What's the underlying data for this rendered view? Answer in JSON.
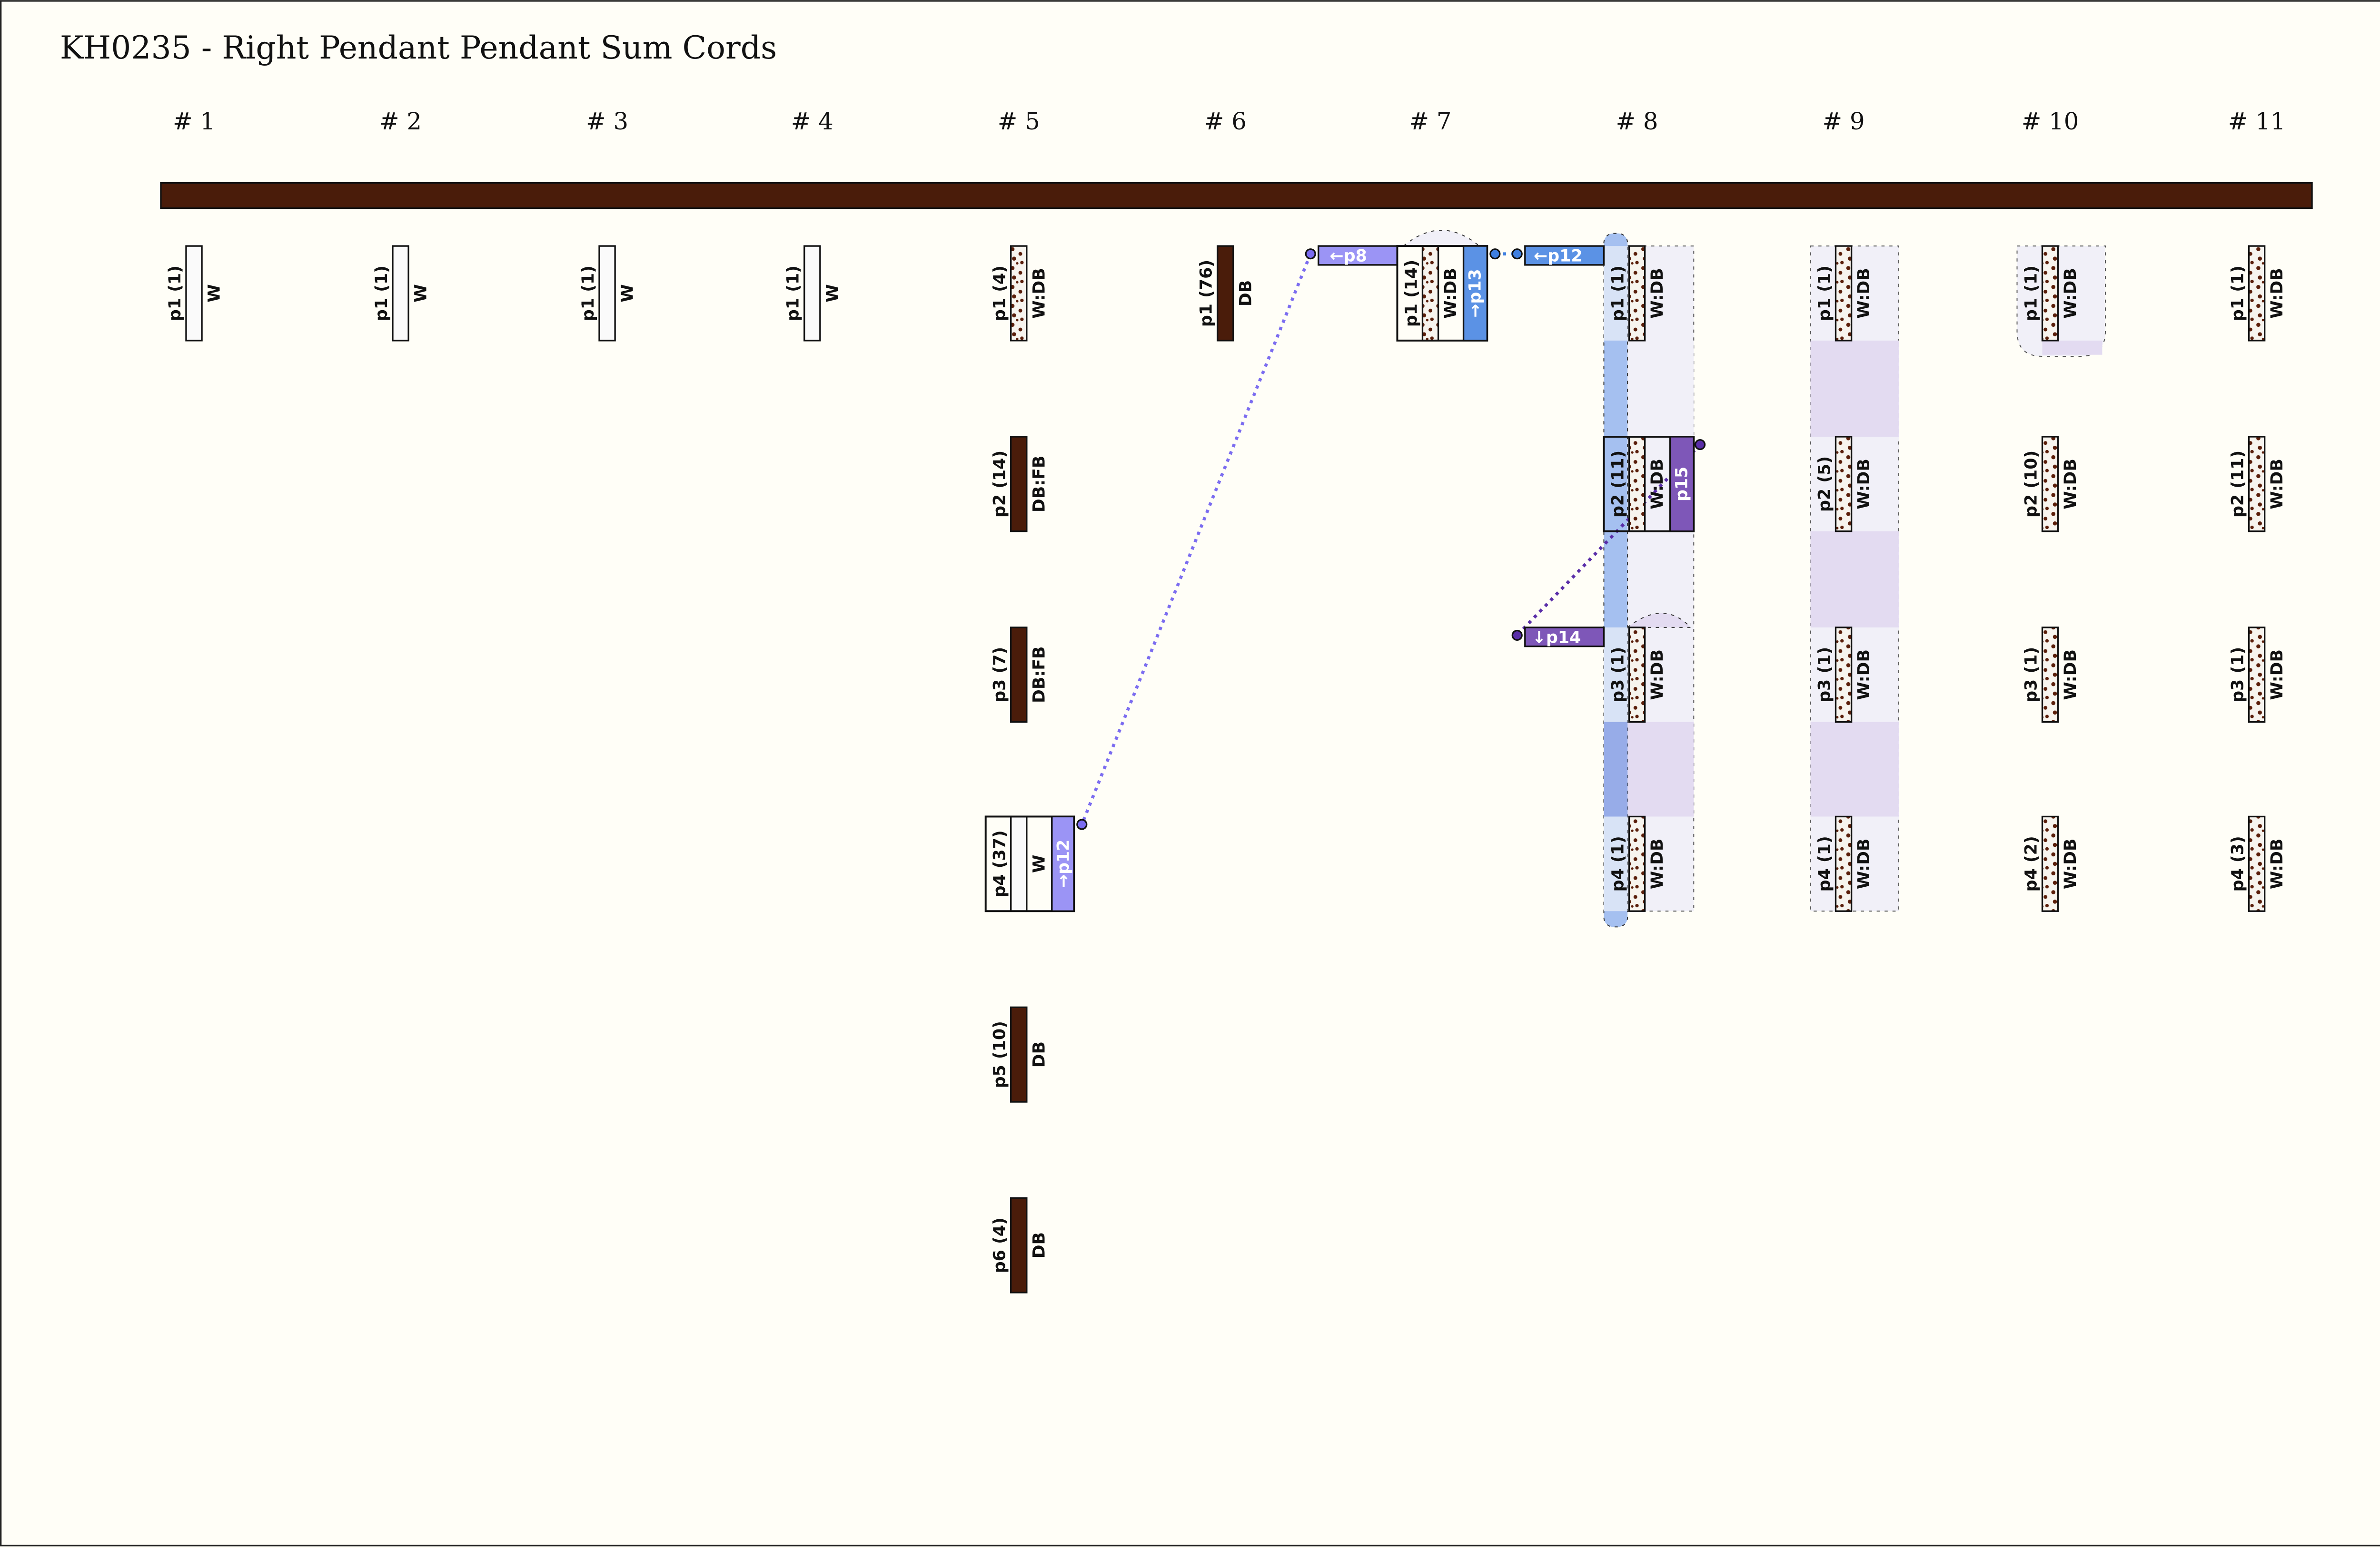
{
  "title": "KH0235 - Right Pendant Pendant Sum Cords",
  "colors": {
    "main_cord": "#4a1c0a",
    "white_cord": "#fafafa",
    "dark_brown": "#4a1c0a",
    "speckle_dot": "#5a1e0a",
    "sum_p8": "#9b94f5",
    "sum_p12": "#5b92e5",
    "sum_p13": "#5b92e5",
    "sum_p14": "#7e57b8",
    "sum_p15": "#7e57b8",
    "group_bg": "#f1f0f8",
    "group_gap": "#e3dbf1",
    "highlight_strip": "#a5c0f0"
  },
  "columns": [
    {
      "header": "# 1",
      "cords": [
        {
          "label": "p1 (1)",
          "code": "W"
        }
      ]
    },
    {
      "header": "# 2",
      "cords": [
        {
          "label": "p1 (1)",
          "code": "W"
        }
      ]
    },
    {
      "header": "# 3",
      "cords": [
        {
          "label": "p1 (1)",
          "code": "W"
        }
      ]
    },
    {
      "header": "# 4",
      "cords": [
        {
          "label": "p1 (1)",
          "code": "W"
        }
      ]
    },
    {
      "header": "# 5",
      "cords": [
        {
          "label": "p1 (4)",
          "code": "W:DB"
        },
        {
          "label": "p2 (14)",
          "code": "DB:FB"
        },
        {
          "label": "p3 (7)",
          "code": "DB:FB"
        },
        {
          "label": "p4 (37)",
          "code": "W"
        },
        {
          "label": "p5 (10)",
          "code": "DB"
        },
        {
          "label": "p6 (4)",
          "code": "DB"
        }
      ]
    },
    {
      "header": "# 6",
      "cords": [
        {
          "label": "p1 (76)",
          "code": "DB"
        }
      ]
    },
    {
      "header": "# 7",
      "cords": [
        {
          "label": "p1 (14)",
          "code": "W:DB"
        }
      ]
    },
    {
      "header": "# 8",
      "cords": [
        {
          "label": "p1 (1)",
          "code": "W:DB"
        },
        {
          "label": "p2 (11)",
          "code": "W:DB"
        },
        {
          "label": "p3 (1)",
          "code": "W:DB"
        },
        {
          "label": "p4 (1)",
          "code": "W:DB"
        }
      ]
    },
    {
      "header": "# 9",
      "cords": [
        {
          "label": "p1 (1)",
          "code": "W:DB"
        },
        {
          "label": "p2 (5)",
          "code": "W:DB"
        },
        {
          "label": "p3 (1)",
          "code": "W:DB"
        },
        {
          "label": "p4 (1)",
          "code": "W:DB"
        }
      ]
    },
    {
      "header": "# 10",
      "cords": [
        {
          "label": "p1 (1)",
          "code": "W:DB"
        },
        {
          "label": "p2 (10)",
          "code": "W:DB"
        },
        {
          "label": "p3 (1)",
          "code": "W:DB"
        },
        {
          "label": "p4 (2)",
          "code": "W:DB"
        }
      ]
    },
    {
      "header": "# 11",
      "cords": [
        {
          "label": "p1 (1)",
          "code": "W:DB"
        },
        {
          "label": "p2 (11)",
          "code": "W:DB"
        },
        {
          "label": "p3 (1)",
          "code": "W:DB"
        },
        {
          "label": "p4 (3)",
          "code": "W:DB"
        }
      ]
    }
  ],
  "sum_links": {
    "p5_p4_tag": "→p12",
    "p7_left_tag": "←p8",
    "p7_right_tag": "→p13",
    "p8_top_tag": "←p12",
    "p8_p2_tag": "p15",
    "p8_p3_tag": "↓p14"
  }
}
